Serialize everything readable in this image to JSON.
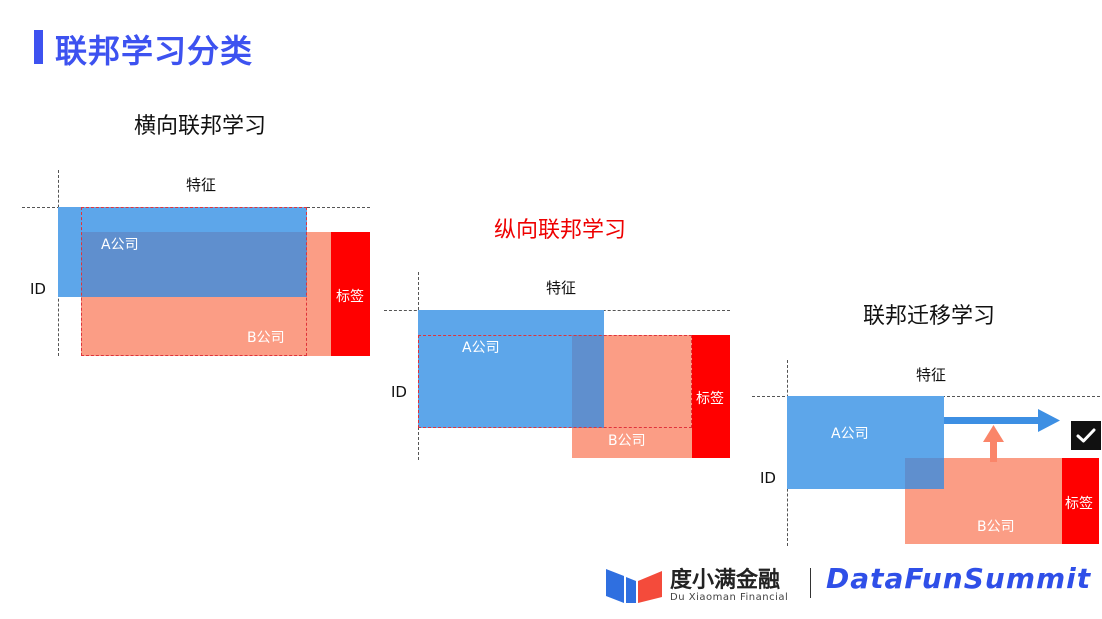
{
  "page_title": "联邦学习分类",
  "horizontal": {
    "title": "横向联邦学习",
    "feature_label": "特征",
    "id_label": "ID",
    "company_a": "A公司",
    "company_b": "B公司",
    "label_text": "标签"
  },
  "vertical": {
    "title": "纵向联邦学习",
    "feature_label": "特征",
    "id_label": "ID",
    "company_a": "A公司",
    "company_b": "B公司",
    "label_text": "标签"
  },
  "transfer": {
    "title": "联邦迁移学习",
    "feature_label": "特征",
    "id_label": "ID",
    "company_a": "A公司",
    "company_b": "B公司",
    "label_text": "标签"
  },
  "footer": {
    "brand_name": "度小满金融",
    "brand_sub": "Du Xiaoman Financial",
    "summit": "DataFunSummit"
  },
  "colors": {
    "accent": "#3d52f0",
    "company_a": "#5da6ea",
    "company_b": "#fb9d85",
    "label": "#ff0000",
    "overlap": "#5f8fce"
  }
}
